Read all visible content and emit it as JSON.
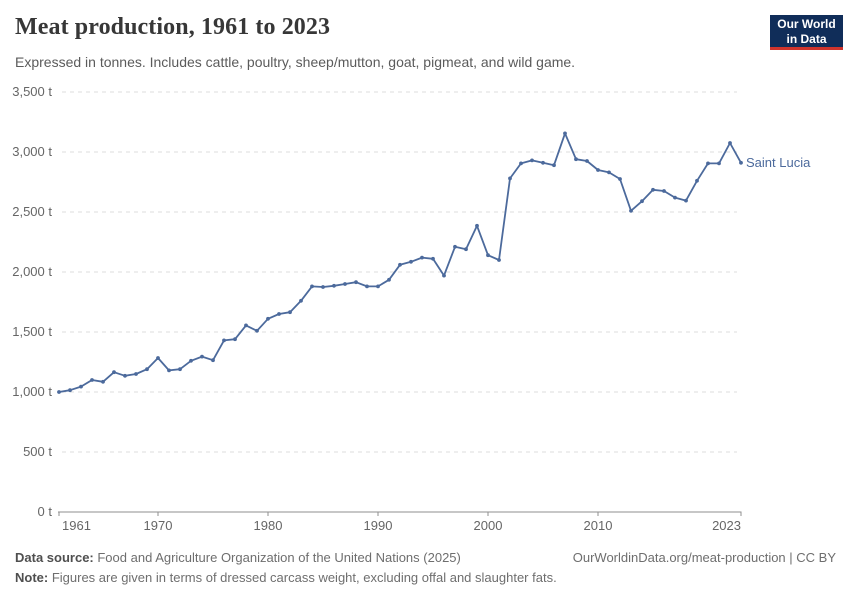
{
  "header": {
    "title": "Meat production, 1961 to 2023",
    "subtitle": "Expressed in tonnes. Includes cattle, poultry, sheep/mutton, goat, pigmeat, and wild game.",
    "logo": {
      "line1": "Our World",
      "line2": "in Data"
    }
  },
  "chart_data": {
    "type": "line",
    "title": "Meat production, 1961 to 2023",
    "unit": "t",
    "ylim": [
      0,
      3500
    ],
    "ytick_interval": 500,
    "ytick_labels": [
      "0 t",
      "500 t",
      "1,000 t",
      "1,500 t",
      "2,000 t",
      "2,500 t",
      "3,000 t",
      "3,500 t"
    ],
    "xticks": [
      1961,
      1970,
      1980,
      1990,
      2000,
      2010,
      2023
    ],
    "grid": "horizontal-dashed",
    "legend_position": "line-end-label",
    "x": [
      1961,
      1962,
      1963,
      1964,
      1965,
      1966,
      1967,
      1968,
      1969,
      1970,
      1971,
      1972,
      1973,
      1974,
      1975,
      1976,
      1977,
      1978,
      1979,
      1980,
      1981,
      1982,
      1983,
      1984,
      1985,
      1986,
      1987,
      1988,
      1989,
      1990,
      1991,
      1992,
      1993,
      1994,
      1995,
      1996,
      1997,
      1998,
      1999,
      2000,
      2001,
      2002,
      2003,
      2004,
      2005,
      2006,
      2007,
      2008,
      2009,
      2010,
      2011,
      2012,
      2013,
      2014,
      2015,
      2016,
      2017,
      2018,
      2019,
      2020,
      2021,
      2022,
      2023
    ],
    "series": [
      {
        "name": "Saint Lucia",
        "color": "#4c6a9c",
        "values": [
          1000,
          1015,
          1045,
          1100,
          1085,
          1165,
          1135,
          1150,
          1190,
          1283,
          1180,
          1190,
          1260,
          1295,
          1265,
          1430,
          1440,
          1555,
          1510,
          1610,
          1650,
          1665,
          1760,
          1880,
          1875,
          1885,
          1900,
          1915,
          1880,
          1880,
          1935,
          2060,
          2085,
          2120,
          2110,
          1970,
          2210,
          2190,
          2385,
          2140,
          2100,
          2780,
          2905,
          2930,
          2910,
          2890,
          3155,
          2940,
          2925,
          2850,
          2830,
          2775,
          2510,
          2590,
          2685,
          2675,
          2620,
          2595,
          2760,
          2905,
          2905,
          3075,
          2910
        ]
      }
    ]
  },
  "colors": {
    "line": "#4c6a9c",
    "grid": "#dcdcdc",
    "axis": "#8f8f8f",
    "logo_navy": "#102d59",
    "logo_red": "#d0342c"
  },
  "footer": {
    "source_label": "Data source:",
    "source_text": " Food and Agriculture Organization of the United Nations (2025)",
    "right_text": "OurWorldinData.org/meat-production | CC BY",
    "note_label": "Note:",
    "note_text": " Figures are given in terms of dressed carcass weight, excluding offal and slaughter fats."
  }
}
